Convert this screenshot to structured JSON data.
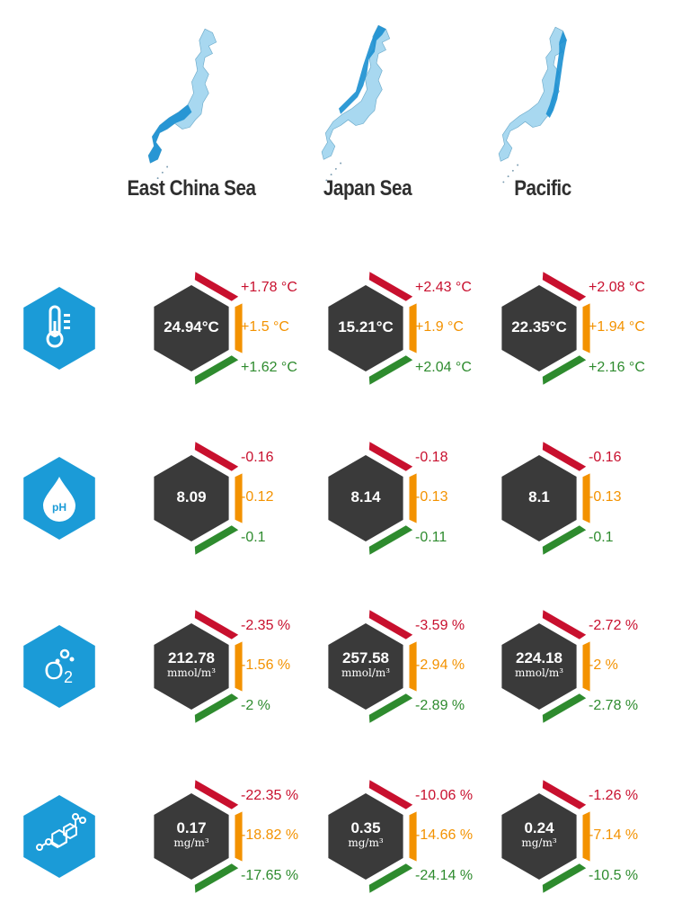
{
  "colors": {
    "high": "#c8102e",
    "mid": "#f39200",
    "low": "#2e8b2e",
    "hex": "#3a3a3a",
    "icon": "#1b9bd7",
    "map_dark": "#1a8fd0",
    "map_light": "#a8d8f0"
  },
  "regions": [
    {
      "name": "East China Sea",
      "map_highlight": "southwest"
    },
    {
      "name": "Japan Sea",
      "map_highlight": "west"
    },
    {
      "name": "Pacific",
      "map_highlight": "east"
    }
  ],
  "rows": [
    {
      "icon": "thermometer-icon",
      "cells": [
        {
          "value": "24.94°C",
          "unit": "",
          "high": "+1.78 °C",
          "mid": "+1.5 °C",
          "low": "+1.62 °C"
        },
        {
          "value": "15.21°C",
          "unit": "",
          "high": "+2.43 °C",
          "mid": "+1.9 °C",
          "low": "+2.04 °C"
        },
        {
          "value": "22.35°C",
          "unit": "",
          "high": "+2.08 °C",
          "mid": "+1.94 °C",
          "low": "+2.16 °C"
        }
      ]
    },
    {
      "icon": "ph-drop-icon",
      "icon_text": "pH",
      "cells": [
        {
          "value": "8.09",
          "unit": "",
          "high": "-0.16",
          "mid": "-0.12",
          "low": "-0.1"
        },
        {
          "value": "8.14",
          "unit": "",
          "high": "-0.18",
          "mid": "-0.13",
          "low": "-0.11"
        },
        {
          "value": "8.1",
          "unit": "",
          "high": "-0.16",
          "mid": "-0.13",
          "low": "-0.1"
        }
      ]
    },
    {
      "icon": "oxygen-icon",
      "icon_text": "O",
      "icon_sub": "2",
      "cells": [
        {
          "value": "212.78",
          "unit": "mmol/m³",
          "high": "-2.35 %",
          "mid": "-1.56 %",
          "low": "-2 %"
        },
        {
          "value": "257.58",
          "unit": "mmol/m³",
          "high": "-3.59 %",
          "mid": "-2.94 %",
          "low": "-2.89 %"
        },
        {
          "value": "224.18",
          "unit": "mmol/m³",
          "high": "-2.72 %",
          "mid": "-2 %",
          "low": "-2.78 %"
        }
      ]
    },
    {
      "icon": "molecule-icon",
      "cells": [
        {
          "value": "0.17",
          "unit": "mg/m³",
          "high": "-22.35 %",
          "mid": "-18.82 %",
          "low": "-17.65 %"
        },
        {
          "value": "0.35",
          "unit": "mg/m³",
          "high": "-10.06 %",
          "mid": "-14.66 %",
          "low": "-24.14 %"
        },
        {
          "value": "0.24",
          "unit": "mg/m³",
          "high": "-1.26 %",
          "mid": "-7.14 %",
          "low": "-10.5 %"
        }
      ]
    }
  ]
}
